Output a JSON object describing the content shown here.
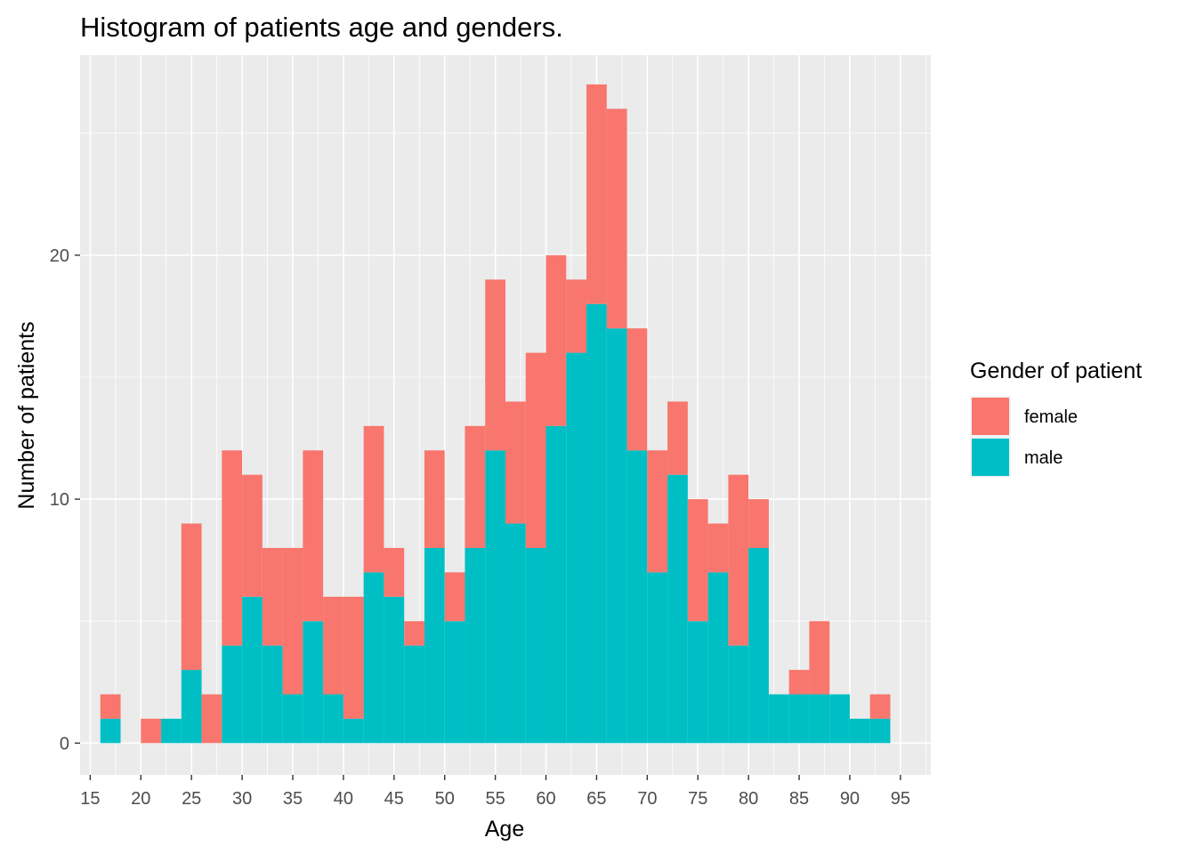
{
  "chart_data": {
    "type": "bar",
    "title": "Histogram of patients age and genders.",
    "xlabel": "Age",
    "ylabel": "Number of patients",
    "x_ticks": [
      15,
      20,
      25,
      30,
      35,
      40,
      45,
      50,
      55,
      60,
      65,
      70,
      75,
      80,
      85,
      90,
      95
    ],
    "y_ticks": [
      0,
      10,
      20
    ],
    "xlim": [
      14,
      98
    ],
    "ylim": [
      -1.3,
      28.2
    ],
    "bin_width": 2,
    "bins": [
      17,
      19,
      21,
      23,
      25,
      27,
      29,
      31,
      33,
      35,
      37,
      39,
      41,
      43,
      45,
      47,
      49,
      51,
      53,
      55,
      57,
      59,
      61,
      63,
      65,
      67,
      69,
      71,
      73,
      75,
      77,
      79,
      81,
      83,
      85,
      87,
      89,
      91,
      93
    ],
    "stacked": true,
    "series": [
      {
        "name": "male",
        "color": "#00BFC4",
        "values": [
          1,
          0,
          0,
          1,
          3,
          0,
          4,
          6,
          4,
          2,
          5,
          2,
          1,
          7,
          6,
          4,
          8,
          5,
          8,
          12,
          9,
          8,
          13,
          16,
          18,
          17,
          12,
          7,
          11,
          5,
          7,
          4,
          8,
          2,
          2,
          2,
          2,
          1,
          1
        ]
      },
      {
        "name": "female",
        "color": "#F8766D",
        "values": [
          1,
          0,
          1,
          0,
          6,
          2,
          8,
          5,
          4,
          6,
          7,
          4,
          5,
          6,
          2,
          1,
          4,
          2,
          5,
          7,
          5,
          8,
          7,
          3,
          9,
          9,
          5,
          5,
          3,
          5,
          2,
          7,
          2,
          0,
          1,
          3,
          0,
          0,
          1
        ]
      }
    ],
    "legend": {
      "title": "Gender of patient",
      "position": "right",
      "entries": [
        "female",
        "male"
      ]
    },
    "grid": true,
    "panel_background": "#EBEBEB",
    "grid_color": "#FFFFFF"
  }
}
